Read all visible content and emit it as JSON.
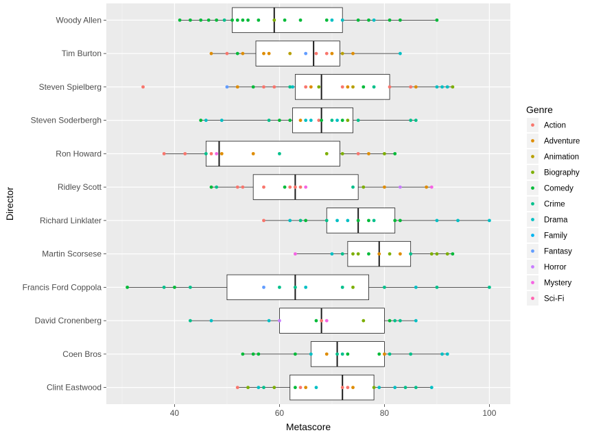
{
  "chart_data": {
    "type": "boxplot",
    "xlabel": "Metascore",
    "ylabel": "Director",
    "xlim": [
      27,
      104
    ],
    "xticks": [
      "40",
      "60",
      "80",
      "100"
    ],
    "grid": true,
    "legend": {
      "title": "Genre",
      "position": "right",
      "entries": [
        {
          "name": "Action",
          "color": "#F8766D"
        },
        {
          "name": "Adventure",
          "color": "#DE8C00"
        },
        {
          "name": "Animation",
          "color": "#B79F00"
        },
        {
          "name": "Biography",
          "color": "#7CAE00"
        },
        {
          "name": "Comedy",
          "color": "#00BA38"
        },
        {
          "name": "Crime",
          "color": "#00C08B"
        },
        {
          "name": "Drama",
          "color": "#00BFC4"
        },
        {
          "name": "Family",
          "color": "#00B4F0"
        },
        {
          "name": "Fantasy",
          "color": "#619CFF"
        },
        {
          "name": "Horror",
          "color": "#C77CFF"
        },
        {
          "name": "Mystery",
          "color": "#F564E3"
        },
        {
          "name": "Sci-Fi",
          "color": "#FF64B0"
        }
      ]
    },
    "categories": [
      "Woody Allen",
      "Tim Burton",
      "Steven Spielberg",
      "Steven Soderbergh",
      "Ron Howard",
      "Ridley Scott",
      "Richard Linklater",
      "Martin Scorsese",
      "Francis Ford Coppola",
      "David Cronenberg",
      "Coen Bros",
      "Clint Eastwood"
    ],
    "boxes": [
      {
        "director": "Woody Allen",
        "min": 41,
        "q1": 51,
        "median": 59,
        "q3": 72,
        "max": 90,
        "points": [
          [
            41,
            "Comedy"
          ],
          [
            43,
            "Comedy"
          ],
          [
            45,
            "Comedy"
          ],
          [
            46.5,
            "Comedy"
          ],
          [
            48,
            "Comedy"
          ],
          [
            49.5,
            "Crime"
          ],
          [
            51,
            "Comedy"
          ],
          [
            52,
            "Comedy"
          ],
          [
            53,
            "Comedy"
          ],
          [
            54,
            "Comedy"
          ],
          [
            56,
            "Comedy"
          ],
          [
            59,
            "Biography"
          ],
          [
            61,
            "Comedy"
          ],
          [
            64,
            "Comedy"
          ],
          [
            69,
            "Comedy"
          ],
          [
            70,
            "Drama"
          ],
          [
            72,
            "Drama"
          ],
          [
            75,
            "Comedy"
          ],
          [
            77,
            "Comedy"
          ],
          [
            78,
            "Drama"
          ],
          [
            81,
            "Comedy"
          ],
          [
            83,
            "Comedy"
          ],
          [
            90,
            "Comedy"
          ]
        ]
      },
      {
        "director": "Tim Burton",
        "min": 47,
        "q1": 55.5,
        "median": 66.5,
        "q3": 71.5,
        "max": 83,
        "points": [
          [
            47,
            "Adventure"
          ],
          [
            50,
            "Action"
          ],
          [
            52,
            "Comedy"
          ],
          [
            53,
            "Adventure"
          ],
          [
            57,
            "Adventure"
          ],
          [
            58,
            "Adventure"
          ],
          [
            62,
            "Animation"
          ],
          [
            65,
            "Fantasy"
          ],
          [
            67,
            "Action"
          ],
          [
            69,
            "Action"
          ],
          [
            70,
            "Adventure"
          ],
          [
            72,
            "Animation"
          ],
          [
            74,
            "Adventure"
          ],
          [
            83,
            "Drama"
          ]
        ]
      },
      {
        "director": "Steven Spielberg",
        "min": 50,
        "q1": 63,
        "median": 68,
        "q3": 81,
        "max": 93,
        "points": [
          [
            34,
            "Action"
          ],
          [
            50,
            "Fantasy"
          ],
          [
            52,
            "Adventure"
          ],
          [
            55,
            "Comedy"
          ],
          [
            57,
            "Action"
          ],
          [
            59,
            "Action"
          ],
          [
            62,
            "Crime"
          ],
          [
            62.5,
            "Drama"
          ],
          [
            65,
            "Action"
          ],
          [
            66,
            "Adventure"
          ],
          [
            67.5,
            "Biography"
          ],
          [
            72,
            "Action"
          ],
          [
            73,
            "Adventure"
          ],
          [
            74,
            "Animation"
          ],
          [
            76,
            "Comedy"
          ],
          [
            78,
            "Crime"
          ],
          [
            81,
            "Action"
          ],
          [
            85,
            "Action"
          ],
          [
            86,
            "Adventure"
          ],
          [
            90,
            "Drama"
          ],
          [
            91,
            "Drama"
          ],
          [
            92,
            "Drama"
          ],
          [
            93,
            "Biography"
          ]
        ]
      },
      {
        "director": "Steven Soderbergh",
        "min": 45,
        "q1": 62.5,
        "median": 68,
        "q3": 74,
        "max": 86,
        "points": [
          [
            45,
            "Comedy"
          ],
          [
            46,
            "Drama"
          ],
          [
            49,
            "Drama"
          ],
          [
            58,
            "Crime"
          ],
          [
            60,
            "Comedy"
          ],
          [
            62,
            "Comedy"
          ],
          [
            64,
            "Adventure"
          ],
          [
            65,
            "Drama"
          ],
          [
            66,
            "Drama"
          ],
          [
            67.5,
            "Action"
          ],
          [
            68,
            "Comedy"
          ],
          [
            70,
            "Crime"
          ],
          [
            71,
            "Drama"
          ],
          [
            72,
            "Comedy"
          ],
          [
            73,
            "Biography"
          ],
          [
            75,
            "Crime"
          ],
          [
            85,
            "Crime"
          ],
          [
            86,
            "Crime"
          ]
        ]
      },
      {
        "director": "Ron Howard",
        "min": 38,
        "q1": 46,
        "median": 48.5,
        "q3": 71.5,
        "max": 82,
        "points": [
          [
            38,
            "Action"
          ],
          [
            42,
            "Action"
          ],
          [
            46,
            "Crime"
          ],
          [
            47,
            "Action"
          ],
          [
            48,
            "Mystery"
          ],
          [
            49,
            "Adventure"
          ],
          [
            55,
            "Adventure"
          ],
          [
            60,
            "Crime"
          ],
          [
            69,
            "Biography"
          ],
          [
            72,
            "Biography"
          ],
          [
            75,
            "Action"
          ],
          [
            77,
            "Adventure"
          ],
          [
            80,
            "Biography"
          ],
          [
            82,
            "Comedy"
          ]
        ]
      },
      {
        "director": "Ridley Scott",
        "min": 47,
        "q1": 55,
        "median": 63,
        "q3": 75,
        "max": 89,
        "points": [
          [
            47,
            "Comedy"
          ],
          [
            48,
            "Crime"
          ],
          [
            52,
            "Action"
          ],
          [
            53,
            "Action"
          ],
          [
            57,
            "Action"
          ],
          [
            61,
            "Comedy"
          ],
          [
            62,
            "Action"
          ],
          [
            63,
            "Action"
          ],
          [
            64,
            "Action"
          ],
          [
            65,
            "Mystery"
          ],
          [
            74,
            "Crime"
          ],
          [
            76,
            "Biography"
          ],
          [
            80,
            "Adventure"
          ],
          [
            83,
            "Horror"
          ],
          [
            88,
            "Adventure"
          ],
          [
            89,
            "Mystery"
          ]
        ]
      },
      {
        "director": "Richard Linklater",
        "min": 57,
        "q1": 69,
        "median": 75,
        "q3": 82,
        "max": 100,
        "points": [
          [
            57,
            "Action"
          ],
          [
            62,
            "Drama"
          ],
          [
            64,
            "Crime"
          ],
          [
            65,
            "Comedy"
          ],
          [
            69,
            "Crime"
          ],
          [
            71,
            "Drama"
          ],
          [
            73,
            "Drama"
          ],
          [
            75,
            "Comedy"
          ],
          [
            77,
            "Comedy"
          ],
          [
            78,
            "Crime"
          ],
          [
            82,
            "Comedy"
          ],
          [
            83,
            "Comedy"
          ],
          [
            90,
            "Drama"
          ],
          [
            94,
            "Drama"
          ],
          [
            100,
            "Drama"
          ]
        ]
      },
      {
        "director": "Martin Scorsese",
        "min": 63,
        "q1": 73,
        "median": 79,
        "q3": 85,
        "max": 93,
        "points": [
          [
            63,
            "Mystery"
          ],
          [
            70,
            "Drama"
          ],
          [
            72,
            "Crime"
          ],
          [
            74,
            "Biography"
          ],
          [
            75,
            "Biography"
          ],
          [
            77,
            "Comedy"
          ],
          [
            79,
            "Adventure"
          ],
          [
            81,
            "Biography"
          ],
          [
            83,
            "Adventure"
          ],
          [
            85,
            "Crime"
          ],
          [
            89,
            "Biography"
          ],
          [
            90,
            "Biography"
          ],
          [
            92,
            "Biography"
          ],
          [
            93,
            "Comedy"
          ]
        ]
      },
      {
        "director": "Francis Ford Coppola",
        "min": 31,
        "q1": 50,
        "median": 63,
        "q3": 77,
        "max": 100,
        "points": [
          [
            31,
            "Comedy"
          ],
          [
            38,
            "Crime"
          ],
          [
            40,
            "Comedy"
          ],
          [
            43,
            "Crime"
          ],
          [
            57,
            "Fantasy"
          ],
          [
            60,
            "Crime"
          ],
          [
            63,
            "Crime"
          ],
          [
            65,
            "Drama"
          ],
          [
            72,
            "Crime"
          ],
          [
            74,
            "Biography"
          ],
          [
            80,
            "Crime"
          ],
          [
            86,
            "Drama"
          ],
          [
            90,
            "Crime"
          ],
          [
            100,
            "Crime"
          ]
        ]
      },
      {
        "director": "David Cronenberg",
        "min": 43,
        "q1": 60,
        "median": 68,
        "q3": 80,
        "max": 86,
        "points": [
          [
            43,
            "Crime"
          ],
          [
            47,
            "Drama"
          ],
          [
            58,
            "Drama"
          ],
          [
            60,
            "Horror"
          ],
          [
            67,
            "Comedy"
          ],
          [
            68,
            "Action"
          ],
          [
            69,
            "Mystery"
          ],
          [
            76,
            "Biography"
          ],
          [
            81,
            "Comedy"
          ],
          [
            82,
            "Crime"
          ],
          [
            83,
            "Crime"
          ],
          [
            86,
            "Drama"
          ]
        ]
      },
      {
        "director": "Coen Bros",
        "min": 53,
        "q1": 66,
        "median": 71,
        "q3": 80,
        "max": 92,
        "points": [
          [
            53,
            "Comedy"
          ],
          [
            55,
            "Comedy"
          ],
          [
            56,
            "Comedy"
          ],
          [
            63,
            "Comedy"
          ],
          [
            66,
            "Drama"
          ],
          [
            69,
            "Adventure"
          ],
          [
            71,
            "Crime"
          ],
          [
            72,
            "Crime"
          ],
          [
            73,
            "Comedy"
          ],
          [
            79,
            "Comedy"
          ],
          [
            80,
            "Adventure"
          ],
          [
            81,
            "Crime"
          ],
          [
            85,
            "Crime"
          ],
          [
            91,
            "Drama"
          ],
          [
            92,
            "Drama"
          ]
        ]
      },
      {
        "director": "Clint Eastwood",
        "min": 52,
        "q1": 62,
        "median": 72,
        "q3": 78,
        "max": 89,
        "points": [
          [
            52,
            "Action"
          ],
          [
            54,
            "Biography"
          ],
          [
            56,
            "Drama"
          ],
          [
            57,
            "Crime"
          ],
          [
            59,
            "Biography"
          ],
          [
            63,
            "Comedy"
          ],
          [
            64,
            "Action"
          ],
          [
            65,
            "Adventure"
          ],
          [
            67,
            "Drama"
          ],
          [
            72,
            "Action"
          ],
          [
            73,
            "Action"
          ],
          [
            74,
            "Adventure"
          ],
          [
            78,
            "Biography"
          ],
          [
            79,
            "Drama"
          ],
          [
            82,
            "Drama"
          ],
          [
            84,
            "Crime"
          ],
          [
            86,
            "Crime"
          ],
          [
            89,
            "Drama"
          ]
        ]
      }
    ]
  }
}
